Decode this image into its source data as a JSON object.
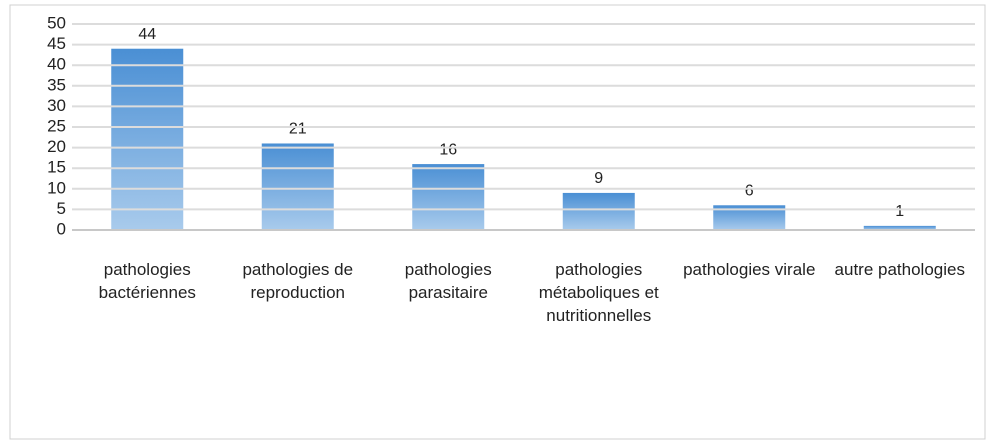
{
  "chart_data": {
    "type": "bar",
    "categories": [
      "pathologies bactériennes",
      "pathologies de reproduction",
      "pathologies parasitaire",
      "pathologies métaboliques et nutritionnelles",
      "pathologies virale",
      "autre pathologies"
    ],
    "values": [
      44,
      21,
      16,
      9,
      6,
      1
    ],
    "color": "#5b9bd5",
    "ylim": [
      0,
      50
    ],
    "yticks": [
      0,
      5,
      10,
      15,
      20,
      25,
      30,
      35,
      40,
      45,
      50
    ],
    "grid": true
  }
}
